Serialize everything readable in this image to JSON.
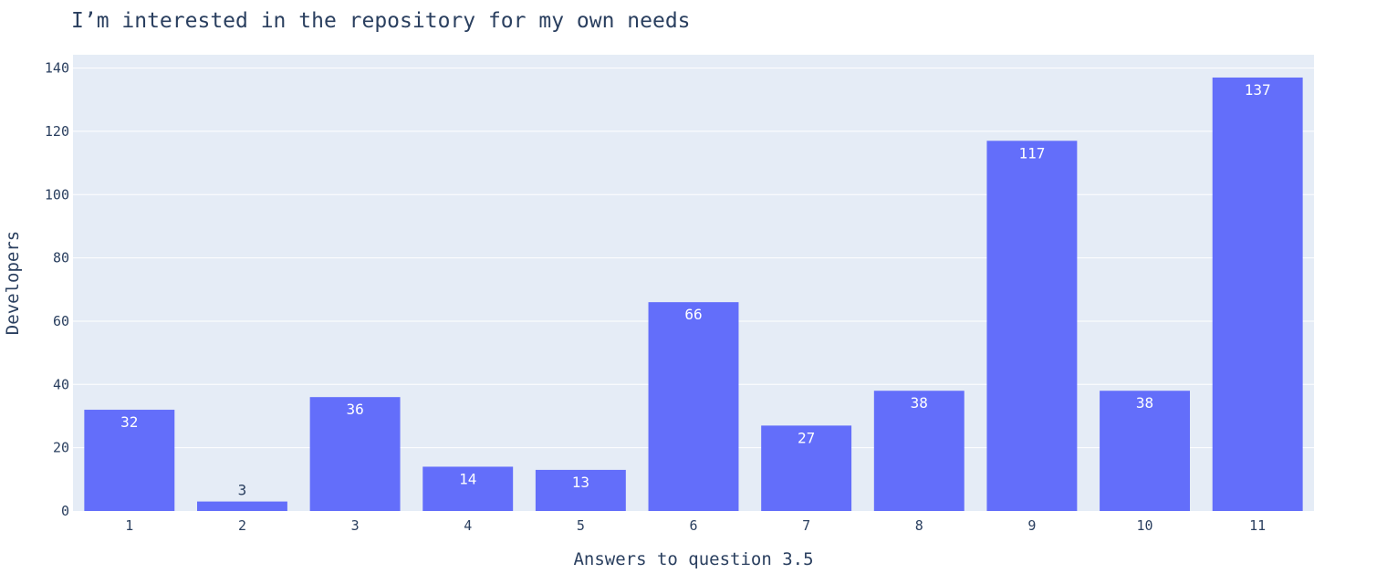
{
  "colors": {
    "bar": "#636efa",
    "plot_bg": "#e5ecf6",
    "grid": "#ffffff",
    "text": "#2a3f5f"
  },
  "chart_data": {
    "type": "bar",
    "title": "I’m interested in the repository for my own needs",
    "xlabel": "Answers to question 3.5",
    "ylabel": "Developers",
    "categories": [
      "1",
      "2",
      "3",
      "4",
      "5",
      "6",
      "7",
      "8",
      "9",
      "10",
      "11"
    ],
    "values": [
      32,
      3,
      36,
      14,
      13,
      66,
      27,
      38,
      117,
      38,
      137
    ],
    "ylim": [
      0,
      144.2
    ],
    "yticks": [
      0,
      20,
      40,
      60,
      80,
      100,
      120,
      140
    ],
    "grid": true,
    "data_labels": true
  }
}
